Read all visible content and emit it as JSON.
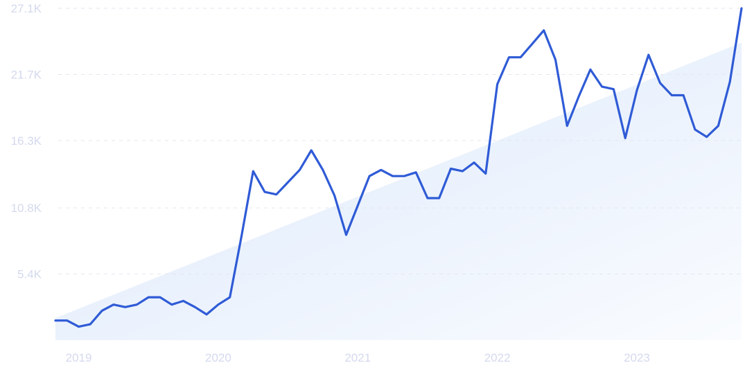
{
  "chart_data": {
    "type": "line",
    "title": "",
    "xlabel": "",
    "ylabel": "",
    "ylim": [
      0,
      27100
    ],
    "y_ticks": [
      {
        "value": 5400,
        "label": "5.4K"
      },
      {
        "value": 10800,
        "label": "10.8K"
      },
      {
        "value": 16300,
        "label": "16.3K"
      },
      {
        "value": 21700,
        "label": "21.7K"
      },
      {
        "value": 27100,
        "label": "27.1K"
      }
    ],
    "x_ticks": [
      {
        "value": "2019-01",
        "label": "2019"
      },
      {
        "value": "2020-01",
        "label": "2020"
      },
      {
        "value": "2021-01",
        "label": "2021"
      },
      {
        "value": "2022-01",
        "label": "2022"
      },
      {
        "value": "2023-01",
        "label": "2023"
      }
    ],
    "grid": true,
    "legend": "none",
    "colors": {
      "line": "#2f5bd6",
      "trend_fill": "#dbe8fb",
      "tick_text": "#d4d9ee",
      "grid": "#e3e6f0"
    },
    "trend": {
      "start": {
        "x": "2018-11",
        "y": 1800
      },
      "end": {
        "x": "2023-10",
        "y": 24300
      }
    },
    "series": [
      {
        "x": [
          "2018-11",
          "2018-12",
          "2019-01",
          "2019-02",
          "2019-03",
          "2019-04",
          "2019-05",
          "2019-06",
          "2019-07",
          "2019-08",
          "2019-09",
          "2019-10",
          "2019-11",
          "2019-12",
          "2020-01",
          "2020-02",
          "2020-03",
          "2020-04",
          "2020-05",
          "2020-06",
          "2020-07",
          "2020-08",
          "2020-09",
          "2020-10",
          "2020-11",
          "2020-12",
          "2021-01",
          "2021-02",
          "2021-03",
          "2021-04",
          "2021-05",
          "2021-06",
          "2021-07",
          "2021-08",
          "2021-09",
          "2021-10",
          "2021-11",
          "2021-12",
          "2022-01",
          "2022-02",
          "2022-03",
          "2022-04",
          "2022-05",
          "2022-06",
          "2022-07",
          "2022-08",
          "2022-09",
          "2022-10",
          "2022-11",
          "2022-12",
          "2023-01",
          "2023-02",
          "2023-03",
          "2023-04",
          "2023-05",
          "2023-06",
          "2023-07",
          "2023-08",
          "2023-09",
          "2023-10"
        ],
        "values": [
          1600,
          1600,
          1100,
          1300,
          2400,
          2900,
          2700,
          2900,
          3500,
          3500,
          2900,
          3200,
          2700,
          2100,
          2900,
          3500,
          8500,
          13800,
          12100,
          11900,
          12900,
          13900,
          15500,
          13900,
          11800,
          8600,
          11000,
          13400,
          13900,
          13400,
          13400,
          13700,
          11600,
          11600,
          14000,
          13800,
          14500,
          13600,
          20900,
          23100,
          23100,
          24200,
          25300,
          22900,
          17500,
          19900,
          22100,
          20700,
          20500,
          16500,
          20400,
          23300,
          21000,
          20000,
          20000,
          17200,
          16600,
          17500,
          21100,
          27100
        ]
      }
    ]
  }
}
